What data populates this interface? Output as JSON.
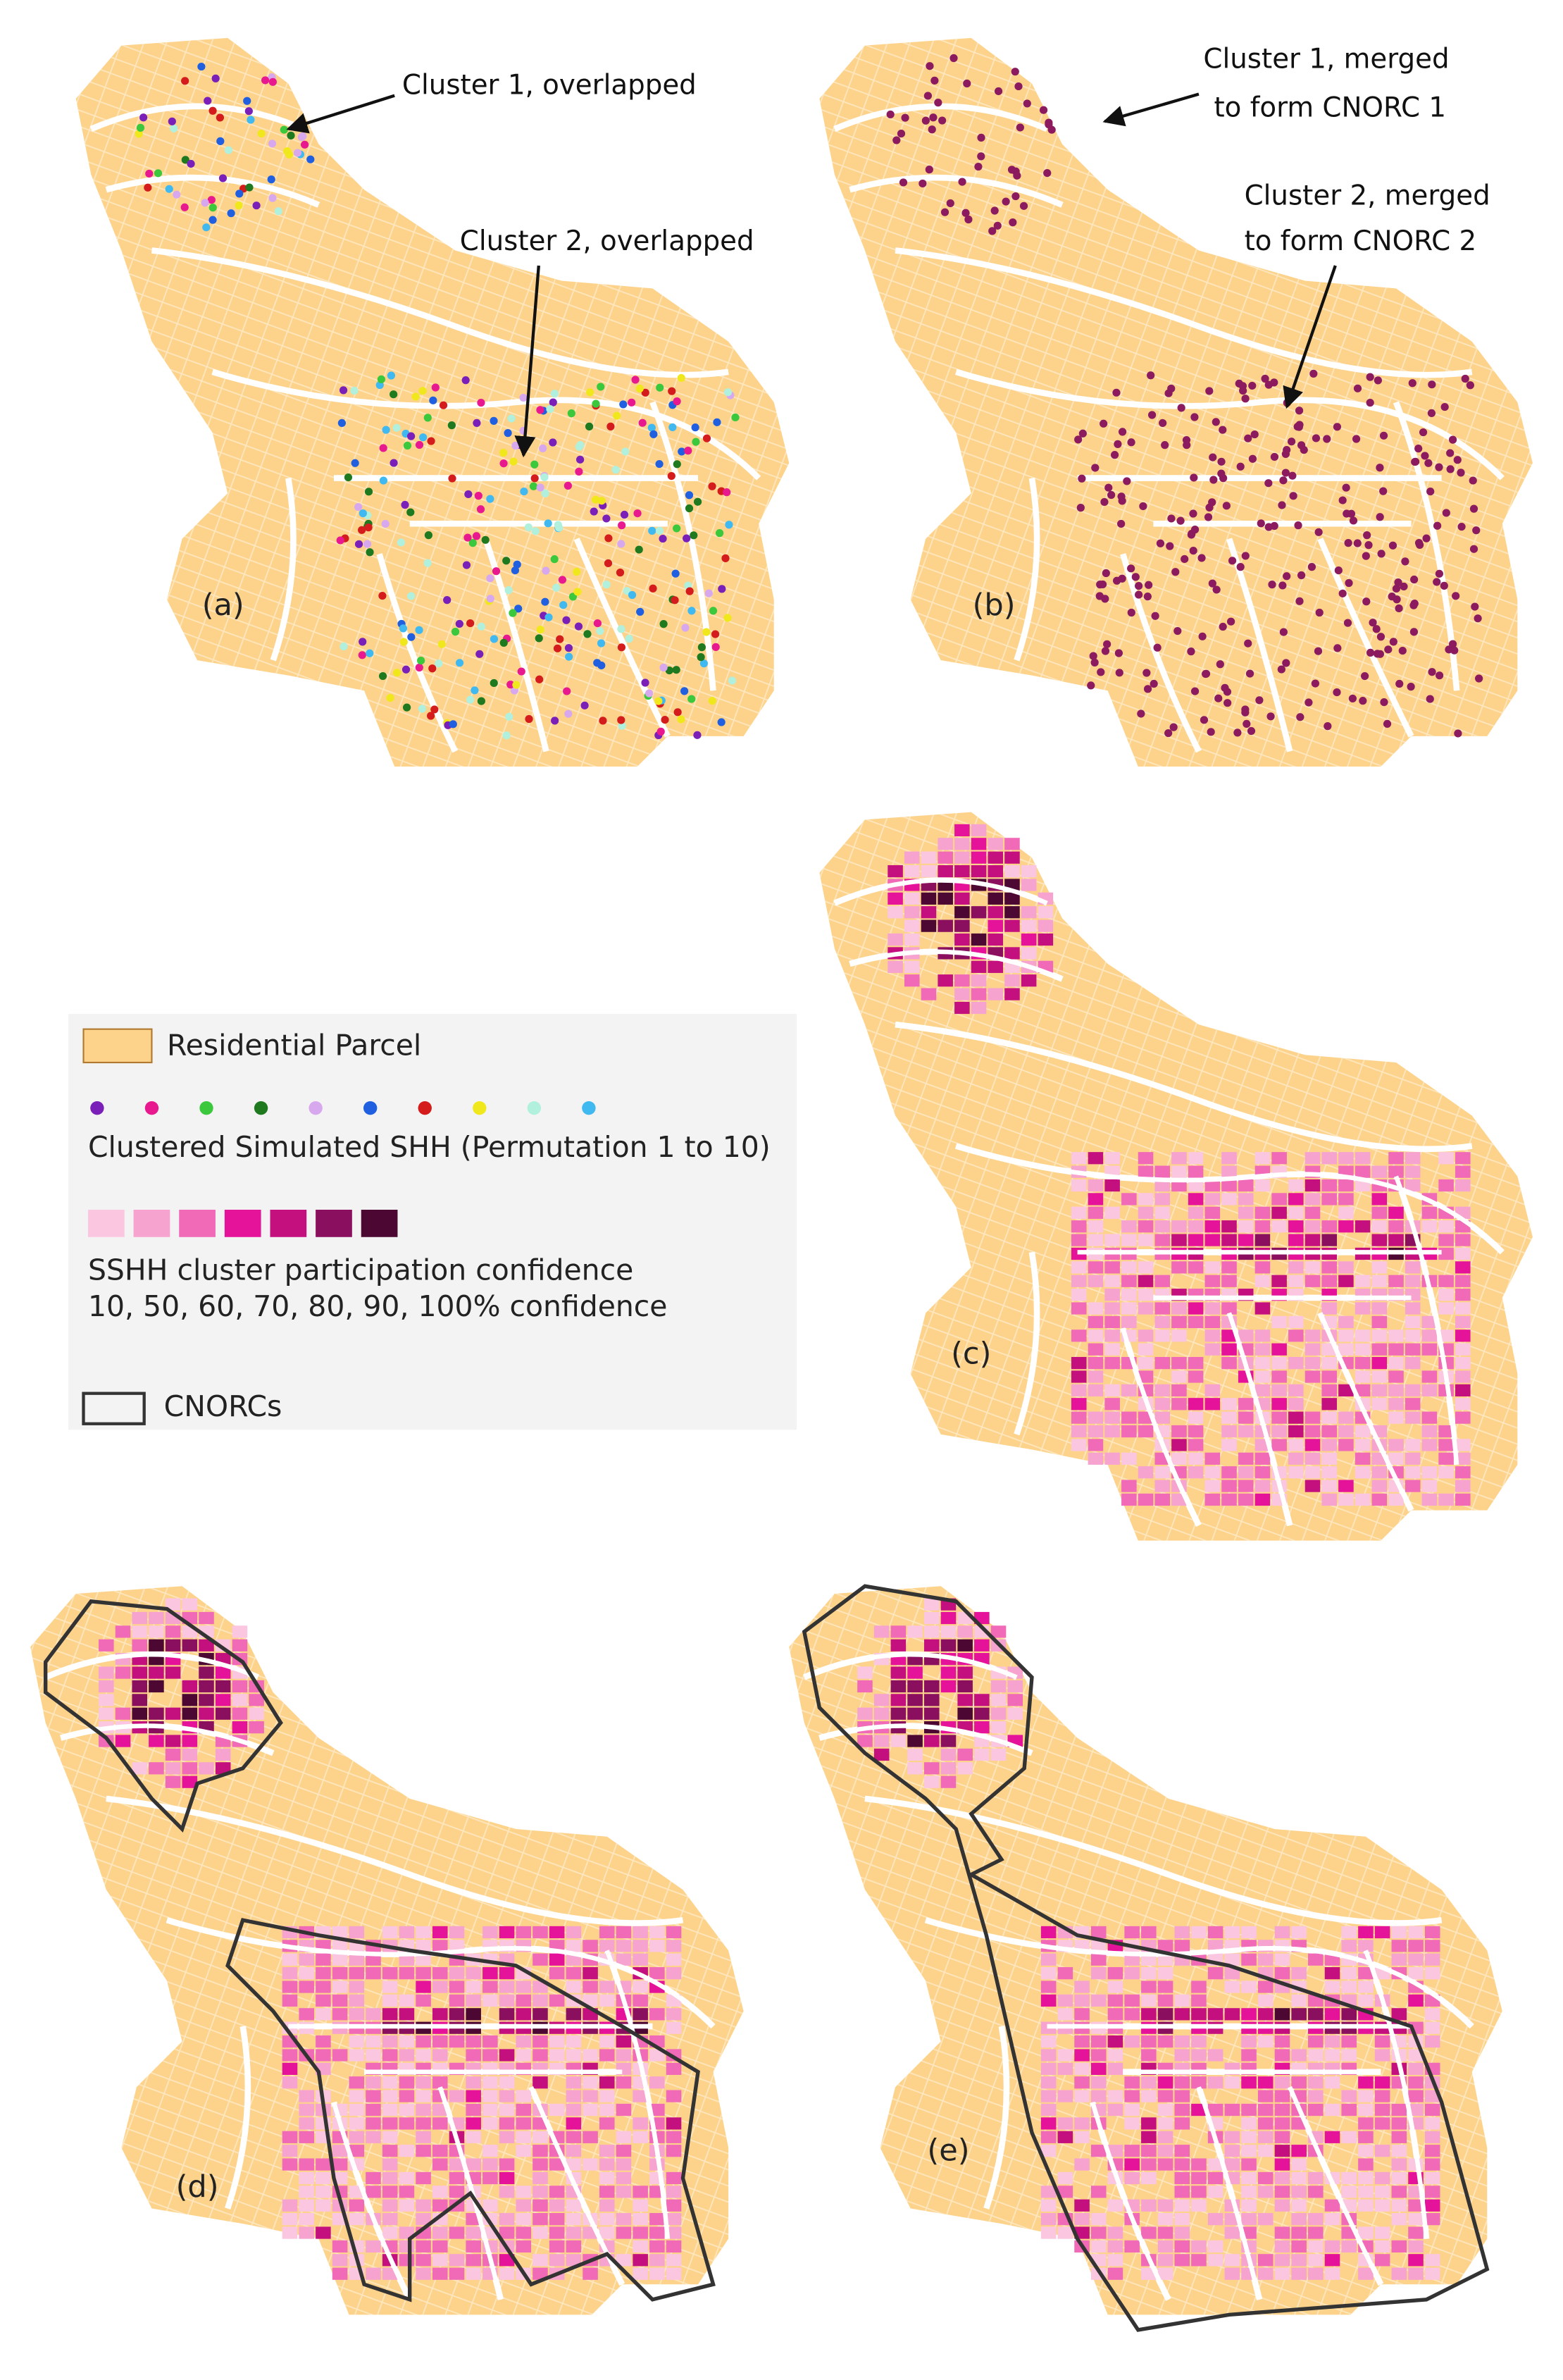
{
  "panels": [
    {
      "label": "(a)",
      "annotations": [
        "Cluster 1, overlapped",
        "Cluster 2, overlapped"
      ]
    },
    {
      "label": "(b)",
      "annotations": [
        "Cluster 1, merged",
        "to form CNORC 1",
        "Cluster 2, merged",
        "to form CNORC 2"
      ]
    },
    {
      "label": "(c)"
    },
    {
      "label": "(d)"
    },
    {
      "label": "(e)"
    }
  ],
  "legend": {
    "parcel": {
      "label": "Residential Parcel",
      "color": "#fdd38c"
    },
    "dots": {
      "label": "Clustered Simulated SHH (Permutation 1 to 10)",
      "colors": [
        "#7a1fb8",
        "#e8188f",
        "#3cc83c",
        "#1f7a1f",
        "#d8a8ef",
        "#2060e0",
        "#d41c1c",
        "#f0e81c",
        "#b0f0dc",
        "#40b8f0"
      ]
    },
    "confidence": {
      "lines": [
        "SSHH cluster participation confidence",
        "10, 50, 60, 70, 80, 90, 100% confidence"
      ],
      "colors": [
        "#fbc6e0",
        "#f7a3cf",
        "#f06ab8",
        "#e4139a",
        "#c4107f",
        "#8a0f5e",
        "#4d0733"
      ]
    },
    "cnorc": {
      "label": "CNORCs"
    }
  }
}
